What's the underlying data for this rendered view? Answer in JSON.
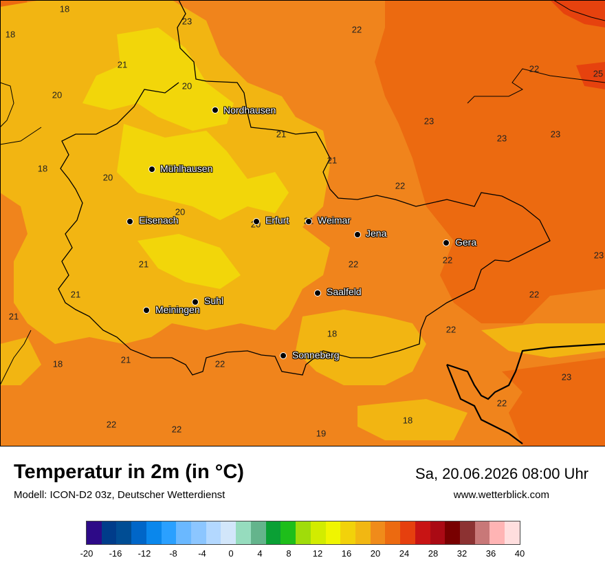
{
  "title": "Temperatur in 2m (in °C)",
  "model_info": "Modell: ICON-D2 03z, Deutscher Wetterdienst",
  "valid_time": "Sa, 20.06.2026 08:00 Uhr",
  "website": "www.wetterblick.com",
  "map_colors": {
    "background": "#f0841c",
    "warm_dark": "#ec6a10",
    "hot": "#e6420e",
    "mild": "#f2b512",
    "cool": "#f2d60a"
  },
  "cities": [
    {
      "name": "Nordhausen",
      "key": "nordhausen"
    },
    {
      "name": "Mühlhausen",
      "key": "muehlhausen"
    },
    {
      "name": "Eisenach",
      "key": "eisenach"
    },
    {
      "name": "Erfurt",
      "key": "erfurt"
    },
    {
      "name": "Weimar",
      "key": "weimar"
    },
    {
      "name": "Jena",
      "key": "jena"
    },
    {
      "name": "Gera",
      "key": "gera"
    },
    {
      "name": "Saalfeld",
      "key": "saalfeld"
    },
    {
      "name": "Suhl",
      "key": "suhl"
    },
    {
      "name": "Meiningen",
      "key": "meiningen"
    },
    {
      "name": "Sonneberg",
      "key": "sonneberg"
    }
  ],
  "temperature_values": [
    "18",
    "23",
    "22",
    "18",
    "21",
    "20",
    "22",
    "25",
    "20",
    "23",
    "23",
    "23",
    "21",
    "21",
    "18",
    "20",
    "22",
    "20",
    "20",
    "21",
    "21",
    "22",
    "22",
    "23",
    "21",
    "21",
    "22",
    "18",
    "22",
    "21",
    "18",
    "22",
    "23",
    "22",
    "22",
    "18",
    "19"
  ],
  "colorbar": {
    "unit": "°C",
    "colors": [
      "#2d0a87",
      "#003c8a",
      "#004d94",
      "#0066c8",
      "#0a87ec",
      "#2aa0ff",
      "#6ab8ff",
      "#8cc6ff",
      "#b3d8ff",
      "#d2e6fa",
      "#96dcbe",
      "#64b48c",
      "#0aa035",
      "#1ebe1a",
      "#a0dc0a",
      "#d2ec00",
      "#f0f500",
      "#f2d20a",
      "#f2b712",
      "#f08b1a",
      "#ec6a10",
      "#e6400e",
      "#c81414",
      "#aa0a14",
      "#780000",
      "#8c3232",
      "#c87878",
      "#ffb4b4",
      "#ffdede"
    ],
    "tick_labels": [
      "-20",
      "-16",
      "-12",
      "-8",
      "-4",
      "0",
      "4",
      "8",
      "12",
      "16",
      "20",
      "24",
      "28",
      "32",
      "36",
      "40"
    ]
  }
}
